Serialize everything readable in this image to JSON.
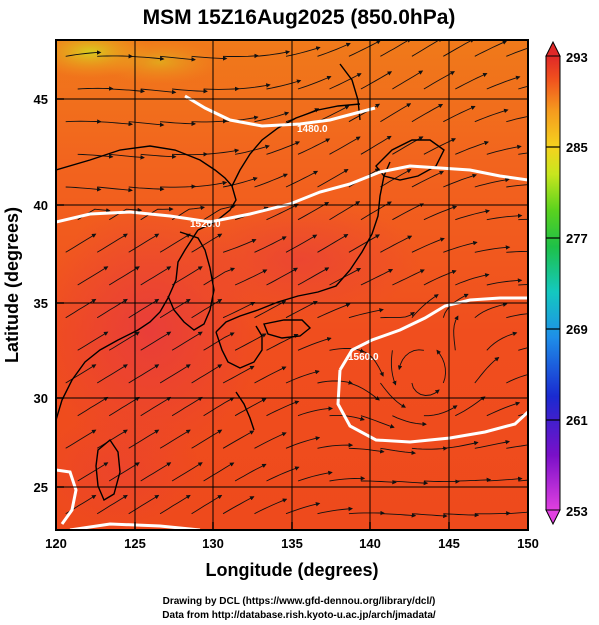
{
  "title": "MSM 15Z16Aug2025 (850.0hPa)",
  "x_axis": {
    "label": "Longitude (degrees)",
    "range": [
      120,
      150
    ],
    "ticks": [
      "120",
      "125",
      "130",
      "135",
      "140",
      "145",
      "150"
    ]
  },
  "y_axis": {
    "label": "Latitude  (degrees)",
    "range": [
      22.6,
      48.2
    ],
    "ticks": [
      "25",
      "30",
      "35",
      "40",
      "45"
    ]
  },
  "colorbar": {
    "range": [
      253,
      293
    ],
    "labels": [
      "293",
      "285",
      "277",
      "269",
      "261",
      "253"
    ]
  },
  "contour_labels": [
    "1480.0",
    "1520.0",
    "1560.0"
  ],
  "credits": {
    "line1": "Drawing by DCL (https://www.gfd-dennou.org/library/dcl/)",
    "line2": "Data from http://database.rish.kyoto-u.ac.jp/arch/jmadata/"
  },
  "colors": {
    "field_dominant": "#f05a1e",
    "contour": "#ffffff",
    "streamline": "#111111",
    "coastline": "#000000"
  }
}
